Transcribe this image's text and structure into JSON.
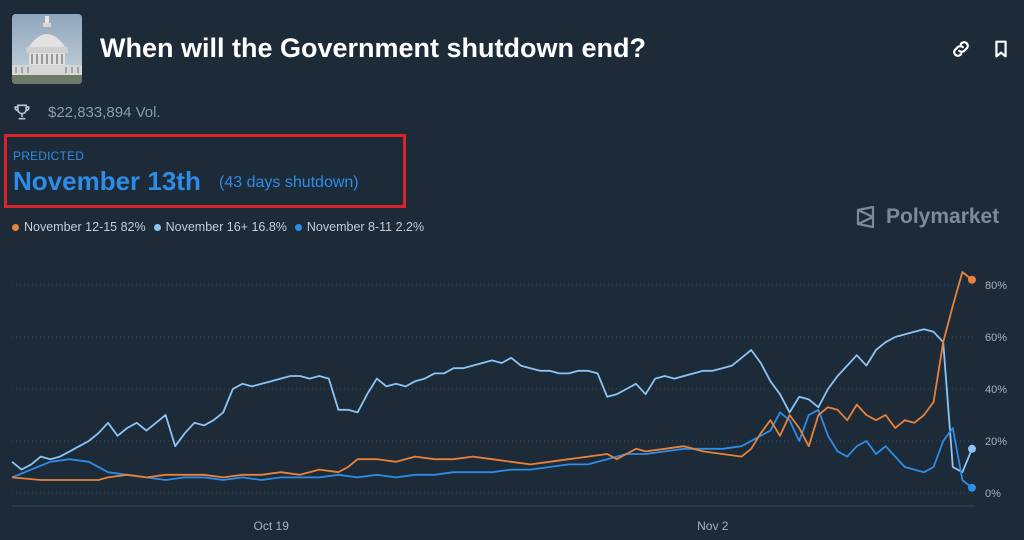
{
  "header": {
    "title": "When will the Government shutdown end?",
    "thumbnail_icon": "capitol-building-icon",
    "link_icon": "link-icon",
    "bookmark_icon": "bookmark-icon"
  },
  "volume": {
    "text": "$22,833,894 Vol.",
    "icon": "trophy-icon"
  },
  "prediction": {
    "label": "PREDICTED",
    "date": "November 13th",
    "note": "(43 days shutdown)",
    "highlight_color": "#d9242a"
  },
  "brand": {
    "name": "Polymarket"
  },
  "colors": {
    "background": "#1d2b39",
    "accent_blue": "#2e8ce6",
    "series_orange": "#e8823a",
    "series_lightblue": "#8cc3f5",
    "series_blue": "#2e8ce6"
  },
  "chart_data": {
    "type": "line",
    "x_ticks": [
      "Oct 19",
      "Nov 2"
    ],
    "y_ticks": [
      "0%",
      "20%",
      "40%",
      "60%",
      "80%"
    ],
    "ylim": [
      0,
      85
    ],
    "grid": "horizontal dotted",
    "legend_position": "top-left",
    "series": [
      {
        "name": "November 12-15",
        "current": "82%",
        "color": "#e8823a",
        "points": [
          [
            0,
            6
          ],
          [
            3,
            5
          ],
          [
            6,
            5
          ],
          [
            9,
            5
          ],
          [
            10,
            6
          ],
          [
            12,
            7
          ],
          [
            14,
            6
          ],
          [
            16,
            7
          ],
          [
            18,
            7
          ],
          [
            20,
            7
          ],
          [
            22,
            6
          ],
          [
            24,
            7
          ],
          [
            26,
            7
          ],
          [
            28,
            8
          ],
          [
            30,
            7
          ],
          [
            32,
            9
          ],
          [
            34,
            8
          ],
          [
            35,
            10
          ],
          [
            36,
            13
          ],
          [
            38,
            13
          ],
          [
            40,
            12
          ],
          [
            42,
            14
          ],
          [
            44,
            13
          ],
          [
            46,
            13
          ],
          [
            48,
            14
          ],
          [
            50,
            13
          ],
          [
            52,
            12
          ],
          [
            54,
            11
          ],
          [
            56,
            12
          ],
          [
            58,
            13
          ],
          [
            60,
            14
          ],
          [
            62,
            15
          ],
          [
            63,
            13
          ],
          [
            64,
            15
          ],
          [
            65,
            17
          ],
          [
            66,
            16
          ],
          [
            68,
            17
          ],
          [
            70,
            18
          ],
          [
            72,
            16
          ],
          [
            74,
            15
          ],
          [
            76,
            14
          ],
          [
            77,
            17
          ],
          [
            78,
            23
          ],
          [
            79,
            28
          ],
          [
            80,
            22
          ],
          [
            81,
            30
          ],
          [
            82,
            25
          ],
          [
            83,
            18
          ],
          [
            84,
            30
          ],
          [
            85,
            33
          ],
          [
            86,
            32
          ],
          [
            87,
            28
          ],
          [
            88,
            34
          ],
          [
            89,
            30
          ],
          [
            90,
            28
          ],
          [
            91,
            30
          ],
          [
            92,
            25
          ],
          [
            93,
            28
          ],
          [
            94,
            27
          ],
          [
            95,
            30
          ],
          [
            96,
            35
          ],
          [
            97,
            58
          ],
          [
            98,
            72
          ],
          [
            99,
            85
          ],
          [
            100,
            82
          ]
        ]
      },
      {
        "name": "November 16+",
        "current": "16.8%",
        "color": "#8cc3f5",
        "points": [
          [
            0,
            12
          ],
          [
            1,
            9
          ],
          [
            2,
            11
          ],
          [
            3,
            14
          ],
          [
            4,
            13
          ],
          [
            5,
            14
          ],
          [
            6,
            16
          ],
          [
            7,
            18
          ],
          [
            8,
            20
          ],
          [
            9,
            23
          ],
          [
            10,
            27
          ],
          [
            11,
            22
          ],
          [
            12,
            25
          ],
          [
            13,
            27
          ],
          [
            14,
            24
          ],
          [
            15,
            27
          ],
          [
            16,
            30
          ],
          [
            17,
            18
          ],
          [
            18,
            23
          ],
          [
            19,
            27
          ],
          [
            20,
            26
          ],
          [
            21,
            28
          ],
          [
            22,
            31
          ],
          [
            23,
            40
          ],
          [
            24,
            42
          ],
          [
            25,
            41
          ],
          [
            26,
            42
          ],
          [
            27,
            43
          ],
          [
            28,
            44
          ],
          [
            29,
            45
          ],
          [
            30,
            45
          ],
          [
            31,
            44
          ],
          [
            32,
            45
          ],
          [
            33,
            44
          ],
          [
            34,
            32
          ],
          [
            35,
            32
          ],
          [
            36,
            31
          ],
          [
            37,
            38
          ],
          [
            38,
            44
          ],
          [
            39,
            41
          ],
          [
            40,
            42
          ],
          [
            41,
            41
          ],
          [
            42,
            43
          ],
          [
            43,
            44
          ],
          [
            44,
            46
          ],
          [
            45,
            46
          ],
          [
            46,
            48
          ],
          [
            47,
            48
          ],
          [
            48,
            49
          ],
          [
            49,
            50
          ],
          [
            50,
            51
          ],
          [
            51,
            50
          ],
          [
            52,
            52
          ],
          [
            53,
            49
          ],
          [
            54,
            48
          ],
          [
            55,
            47
          ],
          [
            56,
            47
          ],
          [
            57,
            46
          ],
          [
            58,
            46
          ],
          [
            59,
            47
          ],
          [
            60,
            47
          ],
          [
            61,
            46
          ],
          [
            62,
            37
          ],
          [
            63,
            38
          ],
          [
            64,
            40
          ],
          [
            65,
            42
          ],
          [
            66,
            38
          ],
          [
            67,
            44
          ],
          [
            68,
            45
          ],
          [
            69,
            44
          ],
          [
            70,
            45
          ],
          [
            71,
            46
          ],
          [
            72,
            47
          ],
          [
            73,
            47
          ],
          [
            74,
            48
          ],
          [
            75,
            49
          ],
          [
            76,
            52
          ],
          [
            77,
            55
          ],
          [
            78,
            50
          ],
          [
            79,
            43
          ],
          [
            80,
            38
          ],
          [
            81,
            31
          ],
          [
            82,
            37
          ],
          [
            83,
            36
          ],
          [
            84,
            33
          ],
          [
            85,
            40
          ],
          [
            86,
            45
          ],
          [
            87,
            49
          ],
          [
            88,
            53
          ],
          [
            89,
            49
          ],
          [
            90,
            55
          ],
          [
            91,
            58
          ],
          [
            92,
            60
          ],
          [
            93,
            61
          ],
          [
            94,
            62
          ],
          [
            95,
            63
          ],
          [
            96,
            62
          ],
          [
            97,
            58
          ],
          [
            98,
            10
          ],
          [
            99,
            8
          ],
          [
            100,
            17
          ]
        ]
      },
      {
        "name": "November 8-11",
        "current": "2.2%",
        "color": "#2e8ce6",
        "points": [
          [
            0,
            6
          ],
          [
            2,
            9
          ],
          [
            4,
            12
          ],
          [
            6,
            13
          ],
          [
            8,
            12
          ],
          [
            10,
            8
          ],
          [
            12,
            7
          ],
          [
            14,
            6
          ],
          [
            16,
            5
          ],
          [
            18,
            6
          ],
          [
            20,
            6
          ],
          [
            22,
            5
          ],
          [
            24,
            6
          ],
          [
            26,
            5
          ],
          [
            28,
            6
          ],
          [
            30,
            6
          ],
          [
            32,
            6
          ],
          [
            34,
            7
          ],
          [
            36,
            6
          ],
          [
            38,
            7
          ],
          [
            40,
            6
          ],
          [
            42,
            7
          ],
          [
            44,
            7
          ],
          [
            46,
            8
          ],
          [
            48,
            8
          ],
          [
            50,
            8
          ],
          [
            52,
            9
          ],
          [
            54,
            9
          ],
          [
            56,
            10
          ],
          [
            58,
            11
          ],
          [
            60,
            11
          ],
          [
            62,
            13
          ],
          [
            64,
            15
          ],
          [
            66,
            15
          ],
          [
            68,
            16
          ],
          [
            70,
            17
          ],
          [
            72,
            17
          ],
          [
            74,
            17
          ],
          [
            76,
            18
          ],
          [
            78,
            22
          ],
          [
            79,
            24
          ],
          [
            80,
            31
          ],
          [
            81,
            28
          ],
          [
            82,
            20
          ],
          [
            83,
            30
          ],
          [
            84,
            32
          ],
          [
            85,
            22
          ],
          [
            86,
            16
          ],
          [
            87,
            14
          ],
          [
            88,
            18
          ],
          [
            89,
            20
          ],
          [
            90,
            15
          ],
          [
            91,
            18
          ],
          [
            92,
            14
          ],
          [
            93,
            10
          ],
          [
            94,
            9
          ],
          [
            95,
            8
          ],
          [
            96,
            10
          ],
          [
            97,
            20
          ],
          [
            98,
            25
          ],
          [
            99,
            5
          ],
          [
            100,
            2
          ]
        ]
      }
    ]
  }
}
